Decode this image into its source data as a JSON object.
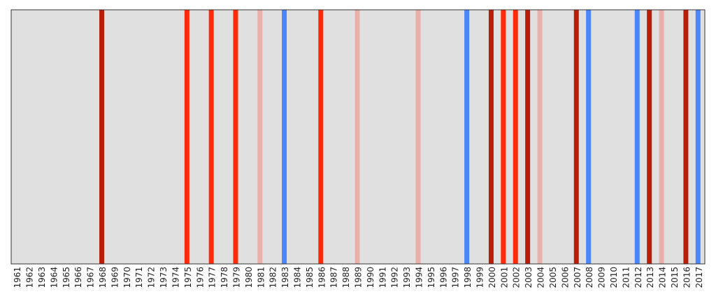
{
  "chart_data": {
    "type": "stripes",
    "categories": [
      "1961",
      "1962",
      "1963",
      "1964",
      "1965",
      "1966",
      "1967",
      "1968",
      "1969",
      "1970",
      "1971",
      "1972",
      "1973",
      "1974",
      "1975",
      "1976",
      "1977",
      "1978",
      "1979",
      "1980",
      "1981",
      "1982",
      "1983",
      "1984",
      "1985",
      "1986",
      "1987",
      "1988",
      "1989",
      "1990",
      "1991",
      "1992",
      "1993",
      "1994",
      "1995",
      "1996",
      "1997",
      "1998",
      "1999",
      "2000",
      "2001",
      "2002",
      "2003",
      "2004",
      "2005",
      "2006",
      "2007",
      "2008",
      "2009",
      "2010",
      "2011",
      "2012",
      "2013",
      "2014",
      "2015",
      "2016",
      "2017"
    ],
    "colors": [
      null,
      null,
      null,
      null,
      null,
      null,
      null,
      "#b81d08",
      null,
      null,
      null,
      null,
      null,
      null,
      "#ff2a0a",
      null,
      "#ff2a0a",
      null,
      "#ff2a0a",
      null,
      "#e8b0a8",
      null,
      "#4a85fa",
      null,
      null,
      "#ff2a0a",
      null,
      null,
      "#e8b0a8",
      null,
      null,
      null,
      null,
      "#e8b0a8",
      null,
      null,
      null,
      "#4a85fa",
      null,
      "#b81d08",
      "#ff2a0a",
      "#ff2a0a",
      "#b81d08",
      "#e8b0a8",
      null,
      null,
      "#b81d08",
      "#4a85fa",
      null,
      null,
      null,
      "#4a85fa",
      "#b81d08",
      "#e8b0a8",
      null,
      "#b81d08",
      "#4a85fa"
    ],
    "background": "#e0e0e0"
  }
}
